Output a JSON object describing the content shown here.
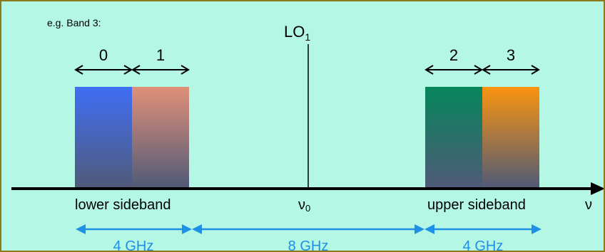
{
  "example_label": "e.g. Band 3:",
  "lo_label": "LO",
  "lo_subscript": "1",
  "sub_bands": [
    "0",
    "1",
    "2",
    "3"
  ],
  "frequency_axis_label": "ν",
  "center_label": "ν",
  "center_subscript": "0",
  "lower_sideband_label": "lower sideband",
  "upper_sideband_label": "upper sideband",
  "spans": {
    "lower_width": "4 GHz",
    "separation": "8 GHz",
    "upper_width": "4 GHz"
  },
  "colors": {
    "background": "#b3f7e4",
    "border": "#8c7a1a",
    "band0": "#3f6ef5",
    "band1": "#e09078",
    "band2": "#05865a",
    "band3": "#fb9410",
    "band_bottom": "#505a78",
    "span_arrow": "#1e90e6"
  }
}
